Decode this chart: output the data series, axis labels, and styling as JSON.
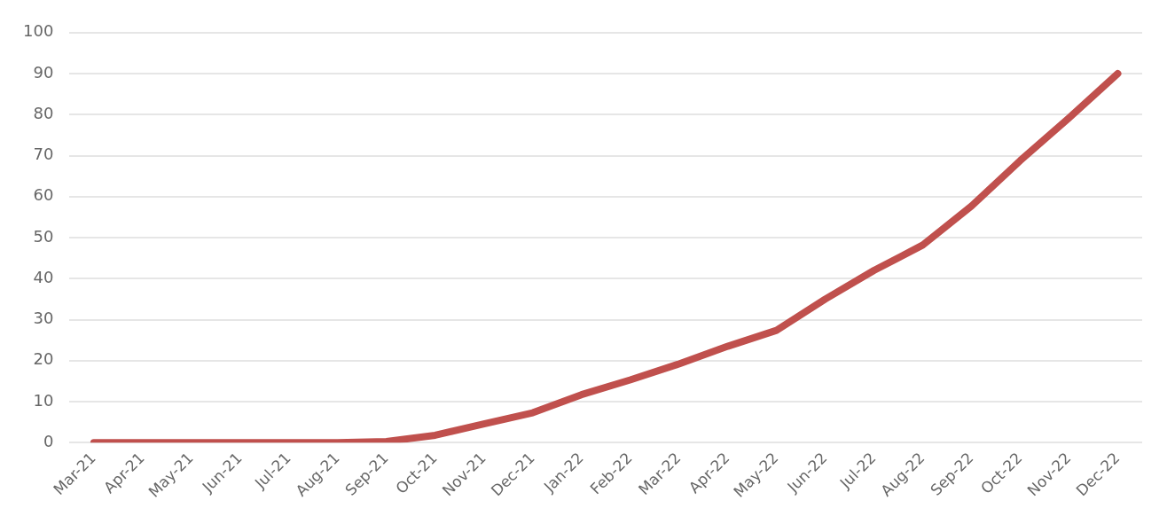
{
  "chart_data": {
    "type": "line",
    "categories": [
      "Mar-21",
      "Apr-21",
      "May-21",
      "Jun-21",
      "Jul-21",
      "Aug-21",
      "Sep-21",
      "Oct-21",
      "Nov-21",
      "Dec-21",
      "Jan-22",
      "Feb-22",
      "Mar-22",
      "Apr-22",
      "May-22",
      "Jun-22",
      "Jul-22",
      "Aug-22",
      "Sep-22",
      "Oct-22",
      "Nov-22",
      "Dec-22"
    ],
    "series": [
      {
        "color": "#c0504d",
        "values": [
          0,
          0,
          0,
          0,
          0,
          0,
          0.3,
          1.8,
          4.6,
          7.3,
          11.7,
          15.3,
          19.2,
          23.5,
          27.4,
          35,
          42,
          48.2,
          57.7,
          68.8,
          79.2,
          90
        ]
      }
    ],
    "ylim": [
      0,
      100
    ],
    "yticks": [
      0,
      10,
      20,
      30,
      40,
      50,
      60,
      70,
      80,
      90,
      100
    ],
    "grid": "y",
    "legend": false,
    "marker": "none",
    "line_style": "solid"
  }
}
